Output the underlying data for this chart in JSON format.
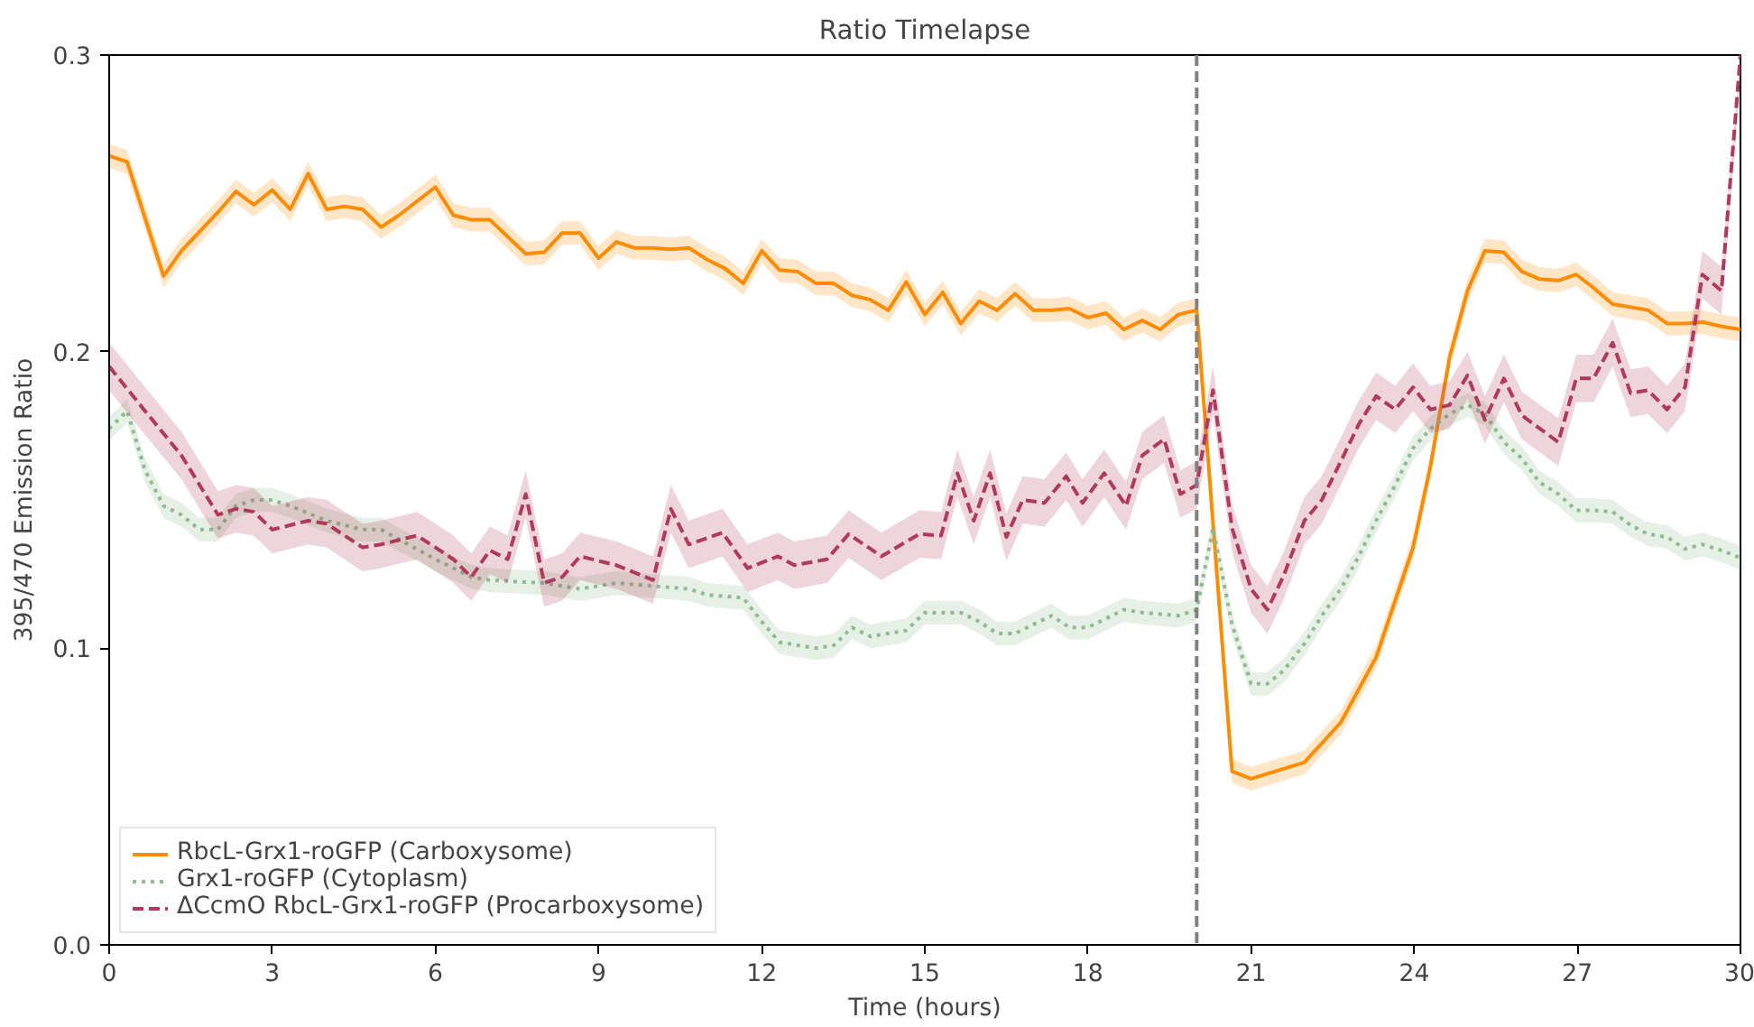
{
  "chart_data": {
    "type": "line",
    "title": "Ratio Timelapse",
    "xlabel": "Time (hours)",
    "ylabel": "395/470 Emission Ratio",
    "xlim": [
      0,
      30
    ],
    "xticks": [
      0,
      3,
      6,
      9,
      12,
      15,
      18,
      21,
      24,
      27,
      30
    ],
    "ylim": [
      0,
      0.3
    ],
    "yticks": [
      {
        "value": 0,
        "label": "0.0"
      },
      0.1,
      0.2,
      0.3
    ],
    "grid": false,
    "legend": "bottom left",
    "marker": "none",
    "ref_lines": [
      {
        "axis": "x",
        "value": 20,
        "color": "#808080",
        "line_style": "dashed"
      }
    ],
    "series": [
      {
        "name": "RbcL-Grx1-roGFP (Carboxysome)",
        "color": "#ff8c00",
        "line_style": "solid",
        "x": [
          0,
          0.33,
          1,
          1.33,
          2,
          2.33,
          2.66,
          3,
          3.33,
          3.66,
          4,
          4.33,
          4.66,
          5,
          5.33,
          6,
          6.33,
          6.66,
          7,
          7.66,
          8,
          8.33,
          8.66,
          9,
          9.33,
          9.66,
          10,
          10.33,
          10.66,
          11,
          11.33,
          11.66,
          12,
          12.33,
          12.66,
          13,
          13.33,
          13.66,
          14,
          14.33,
          14.66,
          15,
          15.33,
          15.66,
          16,
          16.33,
          16.66,
          17,
          17.33,
          17.66,
          18,
          18.33,
          18.66,
          19,
          19.33,
          19.66,
          20,
          20.65,
          21,
          21.98,
          22.65,
          23.3,
          23.98,
          24.3,
          24.65,
          24.98,
          25.3,
          25.65,
          25.98,
          26.3,
          26.65,
          26.98,
          27.3,
          27.65,
          27.98,
          28.3,
          28.65,
          28.98,
          29.3,
          29.65,
          30
        ],
        "values": [
          0.266,
          0.264,
          0.2255,
          0.234,
          0.247,
          0.254,
          0.2495,
          0.2545,
          0.248,
          0.26,
          0.248,
          0.249,
          0.248,
          0.242,
          0.246,
          0.2555,
          0.246,
          0.2445,
          0.2445,
          0.233,
          0.2335,
          0.24,
          0.24,
          0.2315,
          0.237,
          0.235,
          0.235,
          0.2345,
          0.235,
          0.231,
          0.228,
          0.223,
          0.234,
          0.2275,
          0.227,
          0.223,
          0.223,
          0.219,
          0.2175,
          0.214,
          0.2235,
          0.2125,
          0.22,
          0.2095,
          0.217,
          0.214,
          0.2195,
          0.214,
          0.214,
          0.2145,
          0.2115,
          0.213,
          0.2075,
          0.2105,
          0.2075,
          0.2125,
          0.214,
          0.0585,
          0.056,
          0.0615,
          0.075,
          0.097,
          0.134,
          0.1615,
          0.198,
          0.2205,
          0.234,
          0.2335,
          0.227,
          0.2245,
          0.224,
          0.226,
          0.2215,
          0.216,
          0.215,
          0.214,
          0.2095,
          0.2095,
          0.21,
          0.2085,
          0.2075
        ],
        "lower": [
          0.262,
          0.26,
          0.2215,
          0.23,
          0.243,
          0.25,
          0.2455,
          0.2505,
          0.244,
          0.256,
          0.244,
          0.245,
          0.244,
          0.238,
          0.242,
          0.2515,
          0.242,
          0.2405,
          0.2405,
          0.229,
          0.2295,
          0.236,
          0.236,
          0.2275,
          0.233,
          0.231,
          0.231,
          0.2305,
          0.231,
          0.227,
          0.224,
          0.219,
          0.23,
          0.2235,
          0.223,
          0.219,
          0.219,
          0.215,
          0.2135,
          0.21,
          0.2195,
          0.2085,
          0.216,
          0.2055,
          0.213,
          0.21,
          0.2155,
          0.21,
          0.21,
          0.2105,
          0.2075,
          0.209,
          0.2035,
          0.2065,
          0.2035,
          0.2085,
          0.21,
          0.0545,
          0.052,
          0.0575,
          0.071,
          0.093,
          0.13,
          0.1575,
          0.194,
          0.2165,
          0.23,
          0.2295,
          0.223,
          0.2205,
          0.22,
          0.222,
          0.2175,
          0.212,
          0.211,
          0.21,
          0.2055,
          0.2055,
          0.206,
          0.2045,
          0.2035
        ],
        "upper": [
          0.27,
          0.268,
          0.2295,
          0.238,
          0.251,
          0.258,
          0.2535,
          0.2585,
          0.252,
          0.264,
          0.252,
          0.253,
          0.252,
          0.246,
          0.25,
          0.2595,
          0.25,
          0.2485,
          0.2485,
          0.237,
          0.2375,
          0.244,
          0.244,
          0.2355,
          0.241,
          0.239,
          0.239,
          0.2385,
          0.239,
          0.235,
          0.232,
          0.227,
          0.238,
          0.2315,
          0.231,
          0.227,
          0.227,
          0.223,
          0.2215,
          0.218,
          0.2275,
          0.2165,
          0.224,
          0.2135,
          0.221,
          0.218,
          0.2235,
          0.218,
          0.218,
          0.2185,
          0.2155,
          0.217,
          0.2115,
          0.2145,
          0.2115,
          0.2165,
          0.218,
          0.0625,
          0.06,
          0.0655,
          0.079,
          0.101,
          0.138,
          0.1655,
          0.202,
          0.2245,
          0.238,
          0.2375,
          0.231,
          0.2285,
          0.228,
          0.23,
          0.2255,
          0.22,
          0.219,
          0.218,
          0.2135,
          0.2135,
          0.214,
          0.2125,
          0.2115
        ]
      },
      {
        "name": "Grx1-roGFP (Cytoplasm)",
        "color": "#8fbc8f",
        "line_style": "dotted",
        "x": [
          0,
          0.33,
          0.66,
          1,
          1.33,
          1.66,
          2,
          2.33,
          2.66,
          3,
          3.33,
          4,
          4.66,
          5,
          5.5,
          6,
          6.66,
          7,
          8,
          8.66,
          9.33,
          10,
          10.66,
          11,
          11.66,
          12,
          12.33,
          13,
          13.33,
          13.66,
          14,
          14.66,
          15,
          15.66,
          16,
          16.33,
          16.66,
          17.33,
          17.66,
          18,
          18.66,
          19,
          19.66,
          20,
          20.3,
          20.65,
          21,
          21.3,
          21.6,
          21.98,
          22.3,
          22.65,
          22.98,
          23.3,
          23.65,
          23.98,
          24.3,
          24.65,
          24.98,
          25.3,
          25.65,
          25.98,
          26.3,
          26.65,
          26.98,
          27.3,
          27.65,
          27.98,
          28.3,
          28.65,
          28.98,
          29.3,
          29.65,
          30
        ],
        "values": [
          0.174,
          0.18,
          0.16,
          0.148,
          0.145,
          0.14,
          0.14,
          0.148,
          0.15,
          0.15,
          0.148,
          0.143,
          0.14,
          0.14,
          0.135,
          0.13,
          0.124,
          0.123,
          0.122,
          0.12,
          0.122,
          0.121,
          0.12,
          0.118,
          0.117,
          0.109,
          0.102,
          0.1,
          0.101,
          0.107,
          0.104,
          0.106,
          0.112,
          0.112,
          0.109,
          0.105,
          0.105,
          0.111,
          0.107,
          0.107,
          0.113,
          0.112,
          0.111,
          0.113,
          0.1405,
          0.108,
          0.088,
          0.088,
          0.0925,
          0.1015,
          0.111,
          0.12,
          0.131,
          0.143,
          0.155,
          0.1675,
          0.174,
          0.179,
          0.182,
          0.179,
          0.1695,
          0.164,
          0.156,
          0.152,
          0.1465,
          0.1465,
          0.146,
          0.1415,
          0.1385,
          0.1375,
          0.1335,
          0.135,
          0.133,
          0.1305
        ],
        "lower": [
          0.17,
          0.176,
          0.156,
          0.144,
          0.141,
          0.136,
          0.136,
          0.144,
          0.146,
          0.146,
          0.144,
          0.139,
          0.136,
          0.136,
          0.131,
          0.126,
          0.12,
          0.119,
          0.118,
          0.116,
          0.118,
          0.117,
          0.116,
          0.114,
          0.113,
          0.105,
          0.098,
          0.096,
          0.097,
          0.103,
          0.1,
          0.102,
          0.108,
          0.108,
          0.105,
          0.101,
          0.101,
          0.107,
          0.103,
          0.103,
          0.109,
          0.108,
          0.107,
          0.109,
          0.1365,
          0.104,
          0.084,
          0.084,
          0.0885,
          0.0975,
          0.107,
          0.116,
          0.127,
          0.139,
          0.151,
          0.1635,
          0.17,
          0.175,
          0.178,
          0.175,
          0.1655,
          0.16,
          0.152,
          0.148,
          0.1425,
          0.1425,
          0.142,
          0.1375,
          0.1345,
          0.1335,
          0.1295,
          0.131,
          0.129,
          0.1265
        ],
        "upper": [
          0.178,
          0.184,
          0.164,
          0.152,
          0.149,
          0.144,
          0.144,
          0.152,
          0.154,
          0.154,
          0.152,
          0.147,
          0.144,
          0.144,
          0.139,
          0.134,
          0.128,
          0.127,
          0.126,
          0.124,
          0.126,
          0.125,
          0.124,
          0.122,
          0.121,
          0.113,
          0.106,
          0.104,
          0.105,
          0.111,
          0.108,
          0.11,
          0.116,
          0.116,
          0.113,
          0.109,
          0.109,
          0.115,
          0.111,
          0.111,
          0.117,
          0.116,
          0.115,
          0.117,
          0.1445,
          0.112,
          0.092,
          0.092,
          0.0965,
          0.1055,
          0.115,
          0.124,
          0.135,
          0.147,
          0.159,
          0.1715,
          0.178,
          0.183,
          0.186,
          0.183,
          0.1735,
          0.168,
          0.16,
          0.156,
          0.1505,
          0.1505,
          0.15,
          0.1455,
          0.1425,
          0.1415,
          0.1375,
          0.139,
          0.137,
          0.1345
        ]
      },
      {
        "name": "ΔCcmO RbcL-Grx1-roGFP (Procarboxysome)",
        "color": "#b03a5b",
        "line_style": "dashed",
        "x": [
          0,
          0.66,
          1.33,
          2,
          2.33,
          2.66,
          3,
          3.66,
          4,
          4.66,
          5,
          5.66,
          6,
          6.33,
          6.66,
          7,
          7.33,
          7.66,
          8,
          8.33,
          8.66,
          9.33,
          10,
          10.33,
          10.66,
          11.28,
          11.74,
          12.3,
          12.6,
          13.2,
          13.6,
          14.2,
          14.9,
          15.3,
          15.6,
          15.9,
          16.2,
          16.5,
          16.8,
          17.2,
          17.6,
          17.9,
          18.3,
          18.7,
          19.0,
          19.4,
          19.7,
          20.0,
          20.3,
          20.65,
          21.0,
          21.3,
          21.6,
          21.98,
          22.3,
          22.65,
          22.98,
          23.3,
          23.65,
          23.98,
          24.3,
          24.65,
          24.98,
          25.3,
          25.65,
          25.98,
          26.65,
          26.98,
          27.3,
          27.65,
          27.98,
          28.3,
          28.65,
          28.98,
          29.3,
          29.65,
          30
        ],
        "values": [
          0.195,
          0.18,
          0.165,
          0.145,
          0.147,
          0.146,
          0.14,
          0.143,
          0.142,
          0.134,
          0.135,
          0.138,
          0.134,
          0.13,
          0.124,
          0.133,
          0.13,
          0.152,
          0.122,
          0.124,
          0.131,
          0.128,
          0.123,
          0.147,
          0.135,
          0.139,
          0.127,
          0.131,
          0.128,
          0.13,
          0.1385,
          0.131,
          0.1385,
          0.138,
          0.159,
          0.143,
          0.159,
          0.1375,
          0.15,
          0.149,
          0.158,
          0.149,
          0.159,
          0.148,
          0.165,
          0.1705,
          0.152,
          0.155,
          0.187,
          0.1405,
          0.12,
          0.113,
          0.1245,
          0.143,
          0.15,
          0.163,
          0.1755,
          0.185,
          0.1805,
          0.188,
          0.1805,
          0.182,
          0.192,
          0.177,
          0.191,
          0.1785,
          0.1695,
          0.191,
          0.191,
          0.203,
          0.186,
          0.187,
          0.1805,
          0.188,
          0.226,
          0.2205,
          0.3
        ],
        "lower": [
          0.187,
          0.172,
          0.157,
          0.137,
          0.139,
          0.138,
          0.132,
          0.135,
          0.134,
          0.126,
          0.127,
          0.13,
          0.126,
          0.122,
          0.116,
          0.125,
          0.122,
          0.144,
          0.114,
          0.116,
          0.123,
          0.12,
          0.115,
          0.139,
          0.127,
          0.131,
          0.119,
          0.123,
          0.12,
          0.122,
          0.1305,
          0.123,
          0.1305,
          0.13,
          0.151,
          0.135,
          0.151,
          0.1295,
          0.142,
          0.141,
          0.15,
          0.141,
          0.151,
          0.14,
          0.157,
          0.1625,
          0.144,
          0.147,
          0.179,
          0.1325,
          0.112,
          0.105,
          0.1165,
          0.135,
          0.142,
          0.155,
          0.1675,
          0.177,
          0.1725,
          0.18,
          0.1725,
          0.174,
          0.184,
          0.169,
          0.183,
          0.1705,
          0.1615,
          0.183,
          0.183,
          0.195,
          0.178,
          0.179,
          0.1725,
          0.18,
          0.218,
          0.2125,
          0.292
        ],
        "upper": [
          0.203,
          0.188,
          0.173,
          0.153,
          0.155,
          0.154,
          0.148,
          0.151,
          0.15,
          0.142,
          0.143,
          0.146,
          0.142,
          0.138,
          0.132,
          0.141,
          0.138,
          0.16,
          0.13,
          0.132,
          0.139,
          0.136,
          0.131,
          0.155,
          0.143,
          0.147,
          0.135,
          0.139,
          0.136,
          0.138,
          0.1465,
          0.139,
          0.1465,
          0.146,
          0.167,
          0.151,
          0.167,
          0.1455,
          0.158,
          0.157,
          0.166,
          0.157,
          0.167,
          0.156,
          0.173,
          0.1785,
          0.16,
          0.163,
          0.195,
          0.1485,
          0.128,
          0.121,
          0.1325,
          0.151,
          0.158,
          0.171,
          0.1835,
          0.193,
          0.1885,
          0.196,
          0.1885,
          0.19,
          0.2,
          0.185,
          0.199,
          0.1865,
          0.1775,
          0.199,
          0.199,
          0.211,
          0.194,
          0.195,
          0.1885,
          0.196,
          0.234,
          0.2285,
          0.3
        ]
      }
    ]
  }
}
